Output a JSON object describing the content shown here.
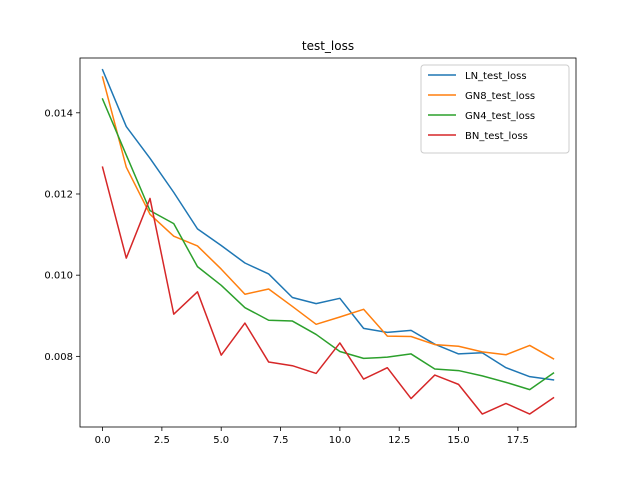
{
  "chart_data": {
    "type": "line",
    "title": "test_loss",
    "xlabel": "",
    "ylabel": "",
    "xlim": [
      -0.95,
      19.95
    ],
    "ylim": [
      0.00626,
      0.01535
    ],
    "x_ticks": [
      0.0,
      2.5,
      5.0,
      7.5,
      10.0,
      12.5,
      15.0,
      17.5
    ],
    "x_tick_labels": [
      "0.0",
      "2.5",
      "5.0",
      "7.5",
      "10.0",
      "12.5",
      "15.0",
      "17.5"
    ],
    "y_ticks": [
      0.008,
      0.01,
      0.012,
      0.014
    ],
    "y_tick_labels": [
      "0.008",
      "0.010",
      "0.012",
      "0.014"
    ],
    "grid": false,
    "legend_position": "top-right",
    "x": [
      0,
      1,
      2,
      3,
      4,
      5,
      6,
      7,
      8,
      9,
      10,
      11,
      12,
      13,
      14,
      15,
      16,
      17,
      18,
      19
    ],
    "series": [
      {
        "name": "LN_test_loss",
        "color": "#1f77b4",
        "values": [
          0.01506,
          0.01366,
          0.01288,
          0.01204,
          0.01114,
          0.01073,
          0.0103,
          0.01003,
          0.00945,
          0.0093,
          0.00943,
          0.00869,
          0.00859,
          0.00864,
          0.0083,
          0.00806,
          0.00809,
          0.00772,
          0.0075,
          0.00742
        ]
      },
      {
        "name": "GN8_test_loss",
        "color": "#ff7f0e",
        "values": [
          0.01488,
          0.01266,
          0.0115,
          0.01096,
          0.01072,
          0.01015,
          0.00953,
          0.00966,
          0.00923,
          0.00879,
          0.00897,
          0.00916,
          0.0085,
          0.00849,
          0.00829,
          0.00825,
          0.00811,
          0.00804,
          0.00827,
          0.00794
        ]
      },
      {
        "name": "GN4_test_loss",
        "color": "#2ca02c",
        "values": [
          0.01434,
          0.01296,
          0.01159,
          0.01127,
          0.01021,
          0.00975,
          0.0092,
          0.00889,
          0.00887,
          0.00854,
          0.00812,
          0.00795,
          0.00798,
          0.00806,
          0.00769,
          0.00765,
          0.00752,
          0.00736,
          0.00718,
          0.00759
        ]
      },
      {
        "name": "BN_test_loss",
        "color": "#d62728",
        "values": [
          0.01266,
          0.01042,
          0.01189,
          0.00904,
          0.00959,
          0.00803,
          0.00882,
          0.00786,
          0.00777,
          0.00758,
          0.00833,
          0.00744,
          0.00772,
          0.00696,
          0.00754,
          0.00731,
          0.00658,
          0.00684,
          0.00658,
          0.00698
        ]
      }
    ]
  }
}
